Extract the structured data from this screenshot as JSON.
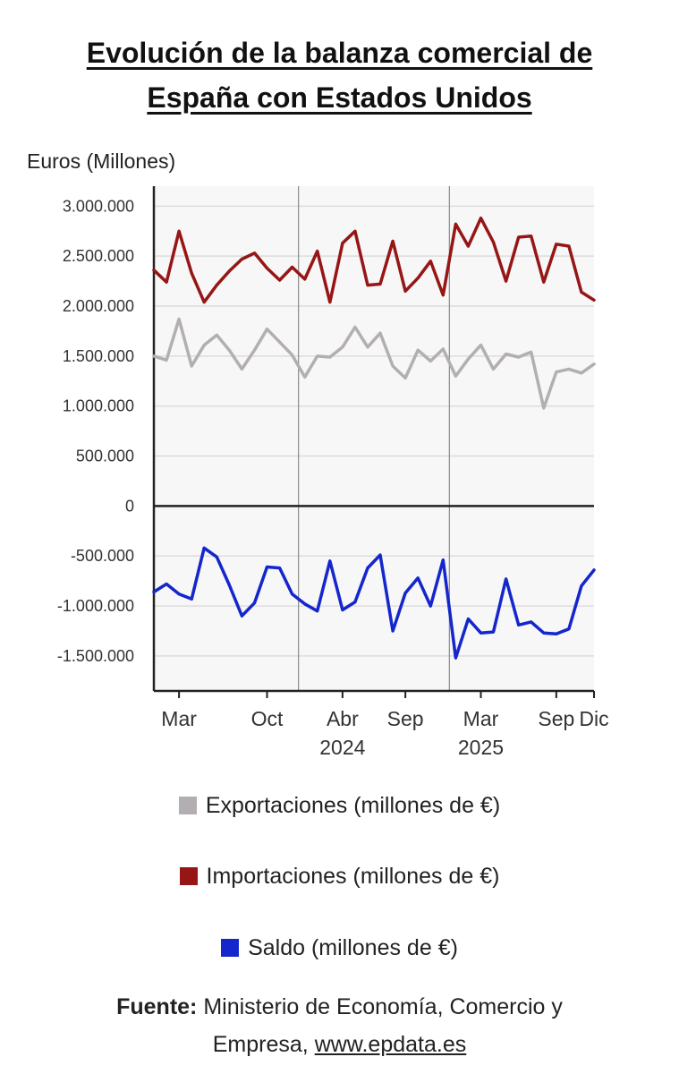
{
  "title_line1": "Evolución de la balanza comercial de",
  "title_line2": "España con Estados Unidos",
  "chart_data": {
    "type": "line",
    "ylabel": "Euros (Millones)",
    "ylim": [
      -1850000,
      3200000
    ],
    "yticks": [
      3000000,
      2500000,
      2000000,
      1500000,
      1000000,
      500000,
      0,
      -500000,
      -1000000,
      -1500000
    ],
    "ytick_labels": [
      "3.000.000",
      "2.500.000",
      "2.000.000",
      "1.500.000",
      "1.000.000",
      "500.000",
      "0",
      "-500.000",
      "-1.000.000",
      "-1.500.000"
    ],
    "x": [
      "2023-01",
      "2023-02",
      "2023-03",
      "2023-04",
      "2023-05",
      "2023-06",
      "2023-07",
      "2023-08",
      "2023-09",
      "2023-10",
      "2023-11",
      "2023-12",
      "2024-01",
      "2024-02",
      "2024-03",
      "2024-04",
      "2024-05",
      "2024-06",
      "2024-07",
      "2024-08",
      "2024-09",
      "2024-10",
      "2024-11",
      "2024-12",
      "2025-01",
      "2025-02",
      "2025-03",
      "2025-04",
      "2025-05",
      "2025-06",
      "2025-07",
      "2025-08",
      "2025-09",
      "2025-10",
      "2025-11",
      "2025-12"
    ],
    "xtick_labels": [
      {
        "x": "2023-03",
        "label": "Mar",
        "sub": ""
      },
      {
        "x": "2023-10",
        "label": "Oct",
        "sub": ""
      },
      {
        "x": "2024-04",
        "label": "Abr",
        "sub": "2024"
      },
      {
        "x": "2024-09",
        "label": "Sep",
        "sub": ""
      },
      {
        "x": "2025-03",
        "label": "Mar",
        "sub": "2025"
      },
      {
        "x": "2025-09",
        "label": "Sep",
        "sub": ""
      },
      {
        "x": "2025-12",
        "label": "Dic",
        "sub": ""
      }
    ],
    "year_dividers": [
      "2024-01",
      "2025-01"
    ],
    "grid": true,
    "legend_position": "bottom",
    "series": [
      {
        "name": "Exportaciones (millones de €)",
        "color": "#b3aeb1",
        "values": [
          1500000,
          1460000,
          1870000,
          1400000,
          1610000,
          1710000,
          1560000,
          1370000,
          1560000,
          1770000,
          1640000,
          1510000,
          1290000,
          1500000,
          1490000,
          1590000,
          1790000,
          1590000,
          1730000,
          1400000,
          1280000,
          1560000,
          1450000,
          1570000,
          1300000,
          1470000,
          1610000,
          1370000,
          1520000,
          1490000,
          1540000,
          980000,
          1340000,
          1370000,
          1330000,
          1420000
        ]
      },
      {
        "name": "Importaciones (millones de €)",
        "color": "#961616",
        "values": [
          2360000,
          2240000,
          2750000,
          2330000,
          2040000,
          2210000,
          2350000,
          2470000,
          2530000,
          2380000,
          2260000,
          2390000,
          2270000,
          2550000,
          2040000,
          2630000,
          2750000,
          2210000,
          2220000,
          2650000,
          2150000,
          2280000,
          2450000,
          2110000,
          2820000,
          2600000,
          2880000,
          2640000,
          2250000,
          2690000,
          2700000,
          2240000,
          2620000,
          2600000,
          2140000,
          2060000
        ]
      },
      {
        "name": "Saldo (millones de €)",
        "color": "#1426cc",
        "values": [
          -860000,
          -780000,
          -880000,
          -930000,
          -420000,
          -510000,
          -790000,
          -1100000,
          -970000,
          -610000,
          -620000,
          -880000,
          -980000,
          -1050000,
          -550000,
          -1040000,
          -960000,
          -620000,
          -490000,
          -1250000,
          -870000,
          -720000,
          -1000000,
          -540000,
          -1520000,
          -1130000,
          -1270000,
          -1260000,
          -730000,
          -1190000,
          -1160000,
          -1270000,
          -1280000,
          -1230000,
          -800000,
          -640000
        ]
      }
    ]
  },
  "source": {
    "label": "Fuente:",
    "text": "Ministerio de Economía, Comercio y",
    "line2_prefix": "Empresa, ",
    "link": "www.epdata.es"
  }
}
